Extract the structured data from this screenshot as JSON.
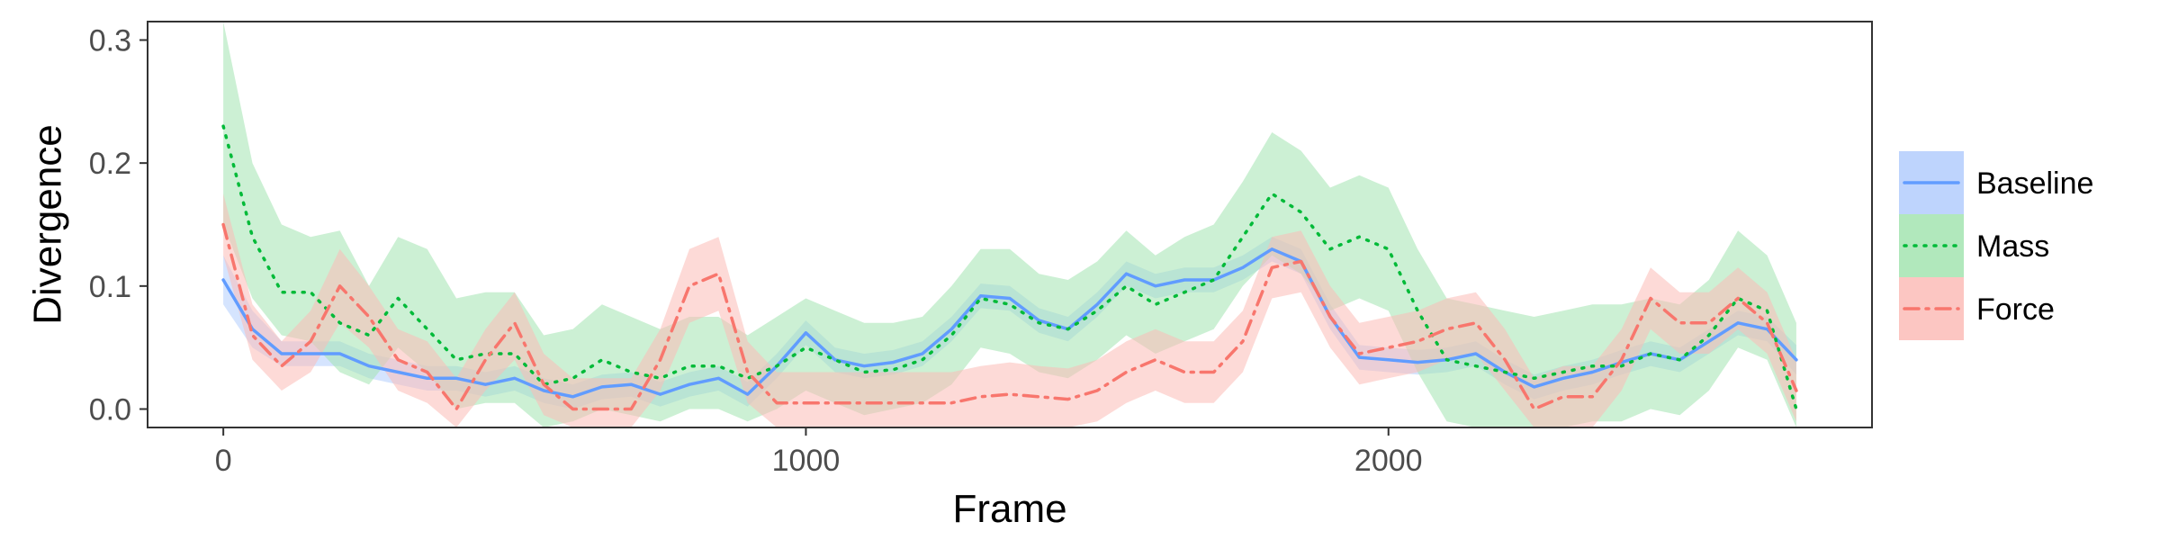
{
  "chart_data": {
    "type": "line",
    "xlabel": "Frame",
    "ylabel": "Divergence",
    "xlim": [
      -130,
      2830
    ],
    "ylim": [
      -0.015,
      0.315
    ],
    "x_ticks": [
      0,
      1000,
      2000
    ],
    "y_ticks": [
      0.0,
      0.1,
      0.2,
      0.3
    ],
    "y_tick_labels": [
      "0.0",
      "0.1",
      "0.2",
      "0.3"
    ],
    "grid": false,
    "legend_position": "right",
    "series": [
      {
        "name": "Baseline",
        "color": "#619cff",
        "fill": "#b3cdfd",
        "line_style": "solid",
        "x": [
          0,
          50,
          100,
          150,
          200,
          250,
          300,
          350,
          400,
          450,
          500,
          550,
          600,
          650,
          700,
          750,
          800,
          850,
          900,
          950,
          1000,
          1050,
          1100,
          1150,
          1200,
          1250,
          1300,
          1350,
          1400,
          1450,
          1500,
          1550,
          1600,
          1650,
          1700,
          1750,
          1800,
          1850,
          1900,
          1950,
          2000,
          2050,
          2100,
          2150,
          2200,
          2250,
          2300,
          2350,
          2400,
          2450,
          2500,
          2550,
          2600,
          2650,
          2700
        ],
        "y": [
          0.105,
          0.065,
          0.045,
          0.045,
          0.045,
          0.035,
          0.03,
          0.025,
          0.025,
          0.02,
          0.025,
          0.015,
          0.01,
          0.018,
          0.02,
          0.012,
          0.02,
          0.025,
          0.012,
          0.035,
          0.062,
          0.04,
          0.035,
          0.038,
          0.045,
          0.065,
          0.092,
          0.09,
          0.072,
          0.065,
          0.085,
          0.11,
          0.1,
          0.105,
          0.105,
          0.115,
          0.13,
          0.12,
          0.075,
          0.042,
          0.04,
          0.038,
          0.04,
          0.045,
          0.03,
          0.018,
          0.025,
          0.03,
          0.038,
          0.045,
          0.04,
          0.055,
          0.07,
          0.065,
          0.04
        ],
        "lower": [
          0.085,
          0.05,
          0.035,
          0.035,
          0.035,
          0.025,
          0.02,
          0.015,
          0.015,
          0.01,
          0.015,
          0.005,
          0.0,
          0.008,
          0.01,
          0.002,
          0.01,
          0.015,
          0.002,
          0.025,
          0.052,
          0.03,
          0.025,
          0.028,
          0.035,
          0.055,
          0.082,
          0.08,
          0.062,
          0.055,
          0.075,
          0.1,
          0.09,
          0.095,
          0.095,
          0.105,
          0.12,
          0.11,
          0.065,
          0.032,
          0.03,
          0.028,
          0.03,
          0.035,
          0.02,
          0.008,
          0.015,
          0.02,
          0.028,
          0.035,
          0.03,
          0.045,
          0.06,
          0.055,
          0.028
        ],
        "upper": [
          0.125,
          0.08,
          0.055,
          0.055,
          0.055,
          0.045,
          0.04,
          0.035,
          0.035,
          0.03,
          0.035,
          0.025,
          0.02,
          0.028,
          0.03,
          0.022,
          0.03,
          0.035,
          0.022,
          0.045,
          0.072,
          0.05,
          0.045,
          0.048,
          0.055,
          0.075,
          0.102,
          0.1,
          0.082,
          0.075,
          0.095,
          0.12,
          0.11,
          0.115,
          0.115,
          0.125,
          0.14,
          0.13,
          0.085,
          0.052,
          0.05,
          0.048,
          0.05,
          0.055,
          0.04,
          0.028,
          0.035,
          0.04,
          0.048,
          0.055,
          0.05,
          0.065,
          0.08,
          0.075,
          0.052
        ]
      },
      {
        "name": "Mass",
        "color": "#00ba38",
        "fill": "#a3e4b0",
        "line_style": "dotted",
        "x": [
          0,
          50,
          100,
          150,
          200,
          250,
          300,
          350,
          400,
          450,
          500,
          550,
          600,
          650,
          700,
          750,
          800,
          850,
          900,
          950,
          1000,
          1050,
          1100,
          1150,
          1200,
          1250,
          1300,
          1350,
          1400,
          1450,
          1500,
          1550,
          1600,
          1650,
          1700,
          1750,
          1800,
          1850,
          1900,
          1950,
          2000,
          2050,
          2100,
          2150,
          2200,
          2250,
          2300,
          2350,
          2400,
          2450,
          2500,
          2550,
          2600,
          2650,
          2700
        ],
        "y": [
          0.23,
          0.14,
          0.095,
          0.095,
          0.07,
          0.06,
          0.09,
          0.065,
          0.04,
          0.045,
          0.045,
          0.02,
          0.025,
          0.04,
          0.03,
          0.025,
          0.035,
          0.035,
          0.025,
          0.035,
          0.05,
          0.04,
          0.03,
          0.032,
          0.04,
          0.06,
          0.09,
          0.085,
          0.07,
          0.065,
          0.08,
          0.1,
          0.085,
          0.095,
          0.105,
          0.14,
          0.175,
          0.16,
          0.13,
          0.14,
          0.13,
          0.08,
          0.04,
          0.035,
          0.03,
          0.025,
          0.03,
          0.035,
          0.035,
          0.045,
          0.04,
          0.06,
          0.09,
          0.08,
          0.0
        ],
        "lower": [
          0.15,
          0.09,
          0.06,
          0.055,
          0.03,
          0.02,
          0.05,
          0.03,
          0.0,
          0.005,
          0.005,
          -0.015,
          -0.01,
          0.0,
          -0.005,
          -0.01,
          0.0,
          0.0,
          -0.01,
          0.0,
          0.015,
          0.005,
          -0.005,
          0.0,
          0.005,
          0.02,
          0.05,
          0.045,
          0.03,
          0.025,
          0.04,
          0.06,
          0.045,
          0.055,
          0.065,
          0.1,
          0.125,
          0.11,
          0.08,
          0.09,
          0.08,
          0.03,
          -0.01,
          -0.015,
          -0.015,
          -0.015,
          -0.015,
          -0.01,
          -0.01,
          0.0,
          -0.005,
          0.015,
          0.05,
          0.04,
          -0.015
        ],
        "upper": [
          0.315,
          0.2,
          0.15,
          0.14,
          0.145,
          0.1,
          0.14,
          0.13,
          0.09,
          0.095,
          0.095,
          0.06,
          0.065,
          0.085,
          0.075,
          0.065,
          0.075,
          0.075,
          0.06,
          0.075,
          0.09,
          0.08,
          0.07,
          0.07,
          0.075,
          0.1,
          0.13,
          0.13,
          0.11,
          0.105,
          0.12,
          0.145,
          0.125,
          0.14,
          0.15,
          0.185,
          0.225,
          0.21,
          0.18,
          0.19,
          0.18,
          0.13,
          0.09,
          0.085,
          0.08,
          0.075,
          0.08,
          0.085,
          0.085,
          0.09,
          0.085,
          0.105,
          0.145,
          0.125,
          0.07
        ]
      },
      {
        "name": "Force",
        "color": "#f8766d",
        "fill": "#fbbcb7",
        "line_style": "dashdot",
        "x": [
          0,
          50,
          100,
          150,
          200,
          250,
          300,
          350,
          400,
          450,
          500,
          550,
          600,
          650,
          700,
          750,
          800,
          850,
          900,
          950,
          1000,
          1050,
          1100,
          1150,
          1200,
          1250,
          1300,
          1350,
          1400,
          1450,
          1500,
          1550,
          1600,
          1650,
          1700,
          1750,
          1800,
          1850,
          1900,
          1950,
          2000,
          2050,
          2100,
          2150,
          2200,
          2250,
          2300,
          2350,
          2400,
          2450,
          2500,
          2550,
          2600,
          2650,
          2700
        ],
        "y": [
          0.15,
          0.06,
          0.035,
          0.055,
          0.1,
          0.075,
          0.04,
          0.03,
          0.0,
          0.04,
          0.07,
          0.02,
          0.0,
          0.0,
          0.0,
          0.04,
          0.1,
          0.11,
          0.03,
          0.005,
          0.005,
          0.005,
          0.005,
          0.005,
          0.005,
          0.005,
          0.01,
          0.012,
          0.01,
          0.008,
          0.015,
          0.03,
          0.04,
          0.03,
          0.03,
          0.055,
          0.115,
          0.12,
          0.075,
          0.045,
          0.05,
          0.055,
          0.065,
          0.07,
          0.04,
          0.0,
          0.01,
          0.01,
          0.04,
          0.09,
          0.07,
          0.07,
          0.09,
          0.07,
          0.015
        ],
        "lower": [
          0.125,
          0.04,
          0.015,
          0.03,
          0.07,
          0.05,
          0.015,
          0.005,
          -0.015,
          0.015,
          0.04,
          -0.005,
          -0.015,
          -0.015,
          -0.015,
          0.015,
          0.07,
          0.08,
          0.005,
          -0.015,
          -0.015,
          -0.015,
          -0.015,
          -0.015,
          -0.015,
          -0.015,
          -0.015,
          -0.015,
          -0.015,
          -0.015,
          -0.01,
          0.005,
          0.015,
          0.005,
          0.005,
          0.03,
          0.09,
          0.095,
          0.05,
          0.02,
          0.025,
          0.03,
          0.04,
          0.045,
          0.015,
          -0.015,
          -0.015,
          -0.015,
          0.015,
          0.065,
          0.045,
          0.045,
          0.065,
          0.045,
          -0.01
        ],
        "upper": [
          0.175,
          0.085,
          0.055,
          0.08,
          0.13,
          0.1,
          0.065,
          0.055,
          0.025,
          0.065,
          0.095,
          0.045,
          0.025,
          0.025,
          0.025,
          0.065,
          0.13,
          0.14,
          0.055,
          0.03,
          0.03,
          0.03,
          0.03,
          0.03,
          0.03,
          0.03,
          0.035,
          0.038,
          0.035,
          0.033,
          0.04,
          0.055,
          0.065,
          0.055,
          0.055,
          0.08,
          0.14,
          0.145,
          0.1,
          0.07,
          0.075,
          0.08,
          0.09,
          0.095,
          0.065,
          0.025,
          0.035,
          0.035,
          0.065,
          0.115,
          0.095,
          0.095,
          0.115,
          0.095,
          0.04
        ]
      }
    ]
  }
}
